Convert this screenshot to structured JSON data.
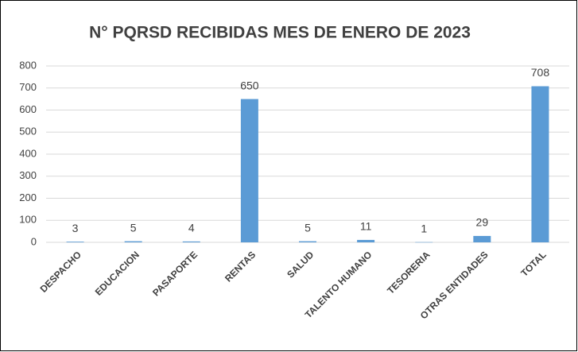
{
  "chart_data": {
    "type": "bar",
    "title": "N° PQRSD RECIBIDAS MES DE ENERO DE 2023",
    "categories": [
      "DESPACHO",
      "EDUCACION",
      "PASAPORTE",
      "RENTAS",
      "SALUD",
      "TALENTO HUMANO",
      "TESORERIA",
      "OTRAS ENTIDADES",
      "TOTAL"
    ],
    "values": [
      3,
      5,
      4,
      650,
      5,
      11,
      1,
      29,
      708
    ],
    "color": "#5b9bd5",
    "ylim": [
      0,
      800
    ],
    "yticks": [
      0,
      100,
      200,
      300,
      400,
      500,
      600,
      700,
      800
    ],
    "grid": true
  }
}
